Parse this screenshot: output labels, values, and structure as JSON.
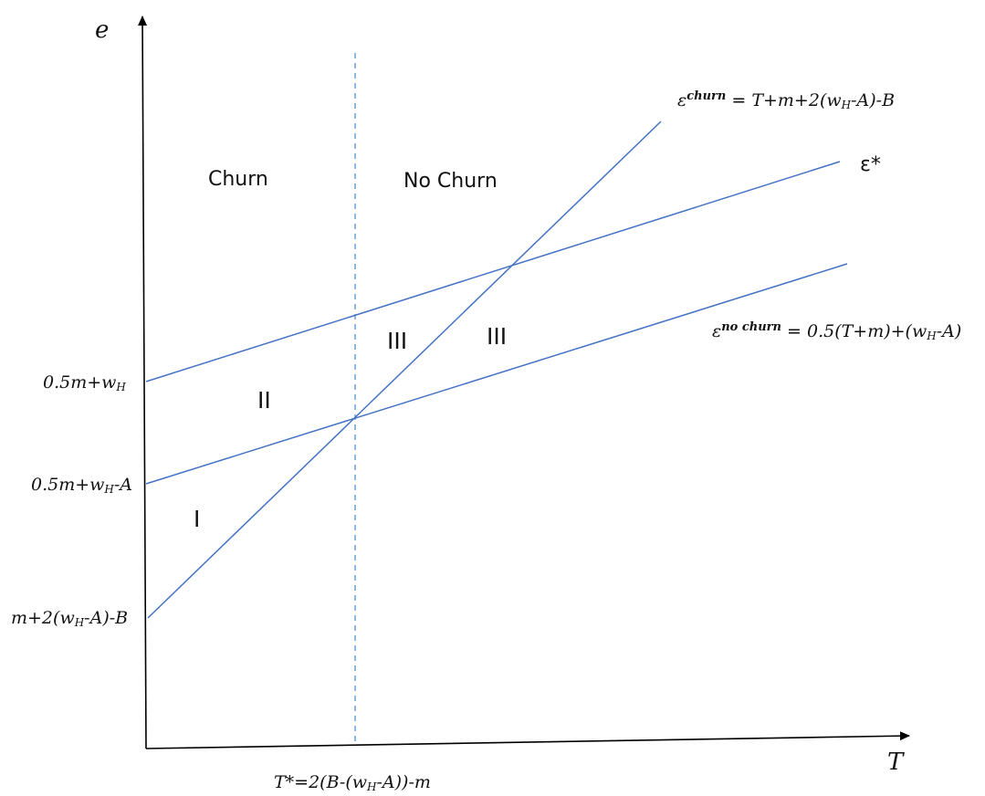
{
  "axes": {
    "y_label": "e",
    "x_label": "T"
  },
  "zones": {
    "churn": "Churn",
    "no_churn": "No Churn"
  },
  "regions": {
    "r1": "I",
    "r2": "II",
    "r3a": "III",
    "r3b": "III"
  },
  "y_ticks": {
    "t1": {
      "a": "0.5m+w",
      "sub": "H",
      "b": ""
    },
    "t2": {
      "a": "0.5m+w",
      "sub": "H",
      "b": "-A"
    },
    "t3": {
      "a": "m+2(w",
      "sub": "H",
      "b": "-A)-B"
    }
  },
  "x_tick": {
    "a": "T*=2(B-(w",
    "sub": "H",
    "b": "-A))-m"
  },
  "lines": {
    "churn": {
      "sym": "ε",
      "sup": "churn",
      "a": " = T+m+2(w",
      "sub": "H",
      "b": "-A)-B"
    },
    "star": {
      "text": "ε*"
    },
    "nochurn": {
      "sym": "ε",
      "sup": "no churn",
      "a": " = 0.5(T+m)+(w",
      "sub": "H",
      "b": "-A)"
    }
  },
  "colors": {
    "line": "#4472c4",
    "dashed": "#5b9bd5",
    "axis": "#000000"
  }
}
